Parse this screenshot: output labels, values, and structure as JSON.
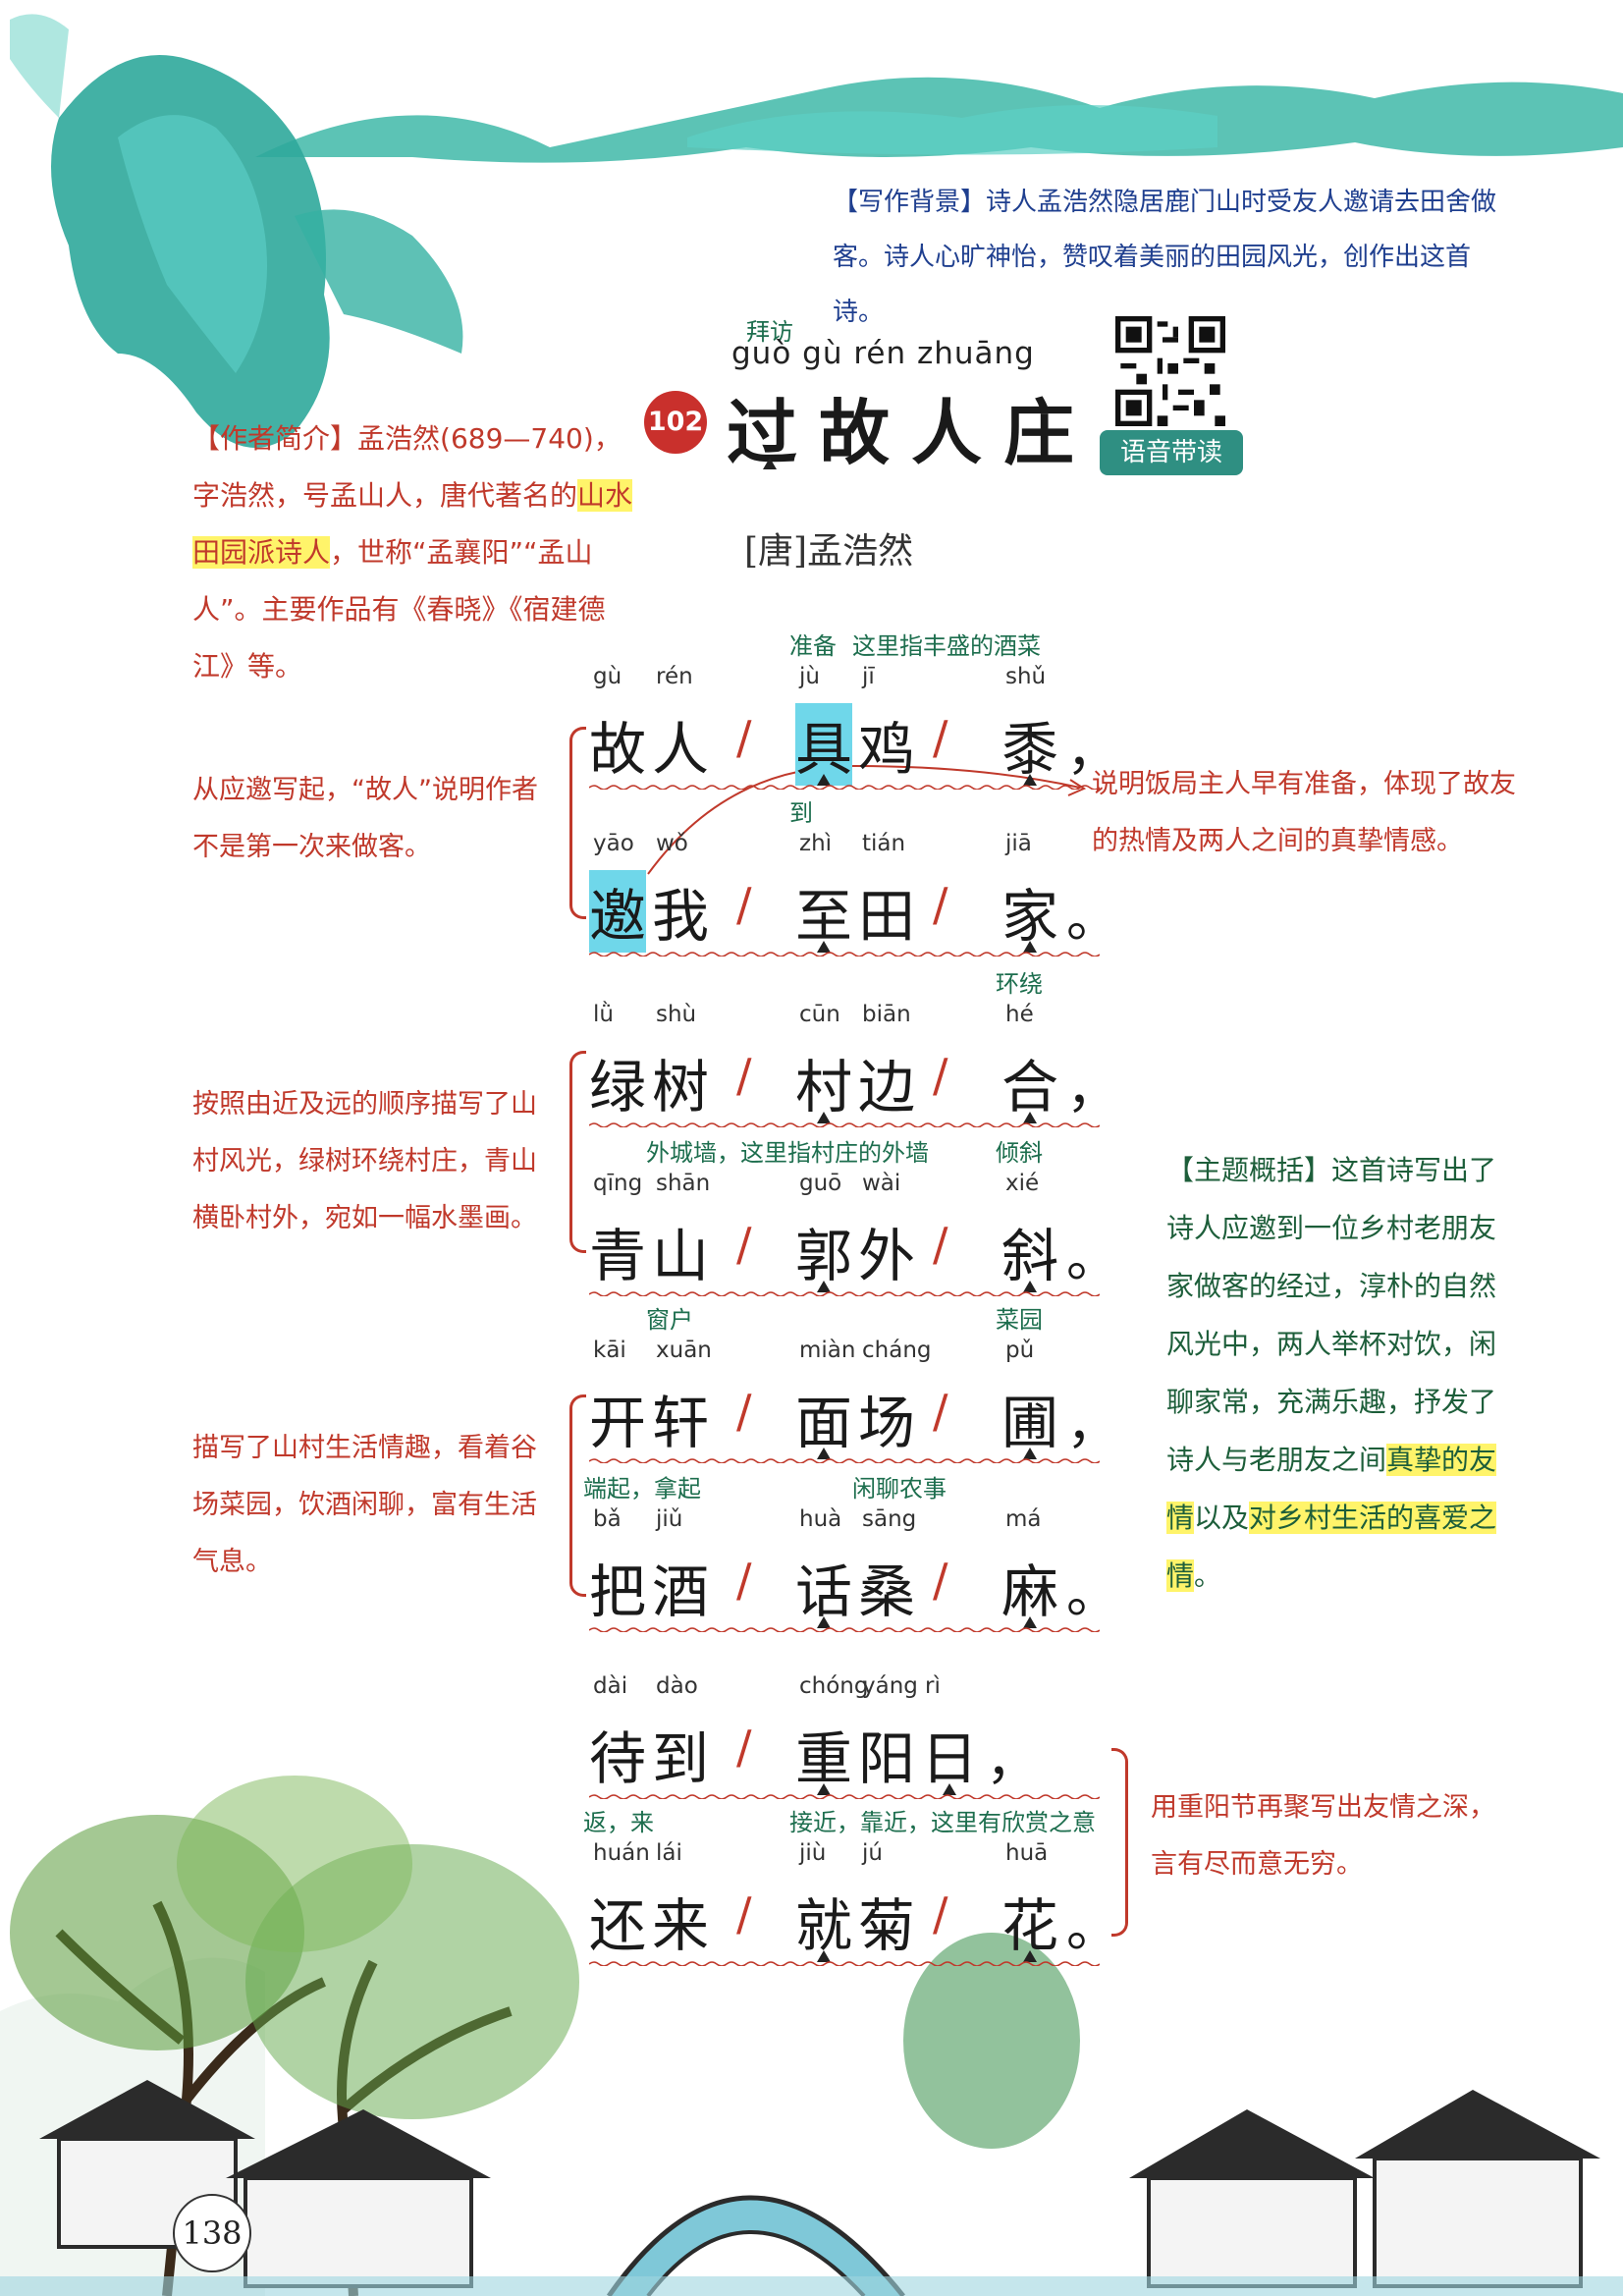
{
  "background_note": {
    "label": "【写作背景】",
    "text": "诗人孟浩然隐居鹿门山时受友人邀请去田舍做客。诗人心旷神怡，赞叹着美丽的田园风光，创作出这首诗。"
  },
  "title": {
    "number": "102",
    "annotation": "拜访",
    "pinyin": "guò gù rén zhuāng",
    "text": "过故人庄"
  },
  "author": "[唐]孟浩然",
  "audio": {
    "label": "语音带读",
    "icon": "qr-code-icon"
  },
  "author_note": {
    "label": "【作者简介】",
    "text_before": "孟浩然(689—740)，字浩然，号孟山人，唐代著名的",
    "highlight": "山水田园派诗人",
    "text_after": "，世称“孟襄阳”“孟山人”。主要作品有《春晓》《宿建德江》等。"
  },
  "poem": {
    "lines": [
      {
        "chars": [
          "故",
          "人",
          "具",
          "鸡",
          "黍"
        ],
        "pinyin": [
          "gù",
          "rén",
          "jù",
          "jī",
          "shǔ"
        ],
        "punc": "，",
        "glosses": [
          {
            "text": "准备",
            "over": 2
          },
          {
            "text": "这里指丰盛的酒菜",
            "over": 3
          }
        ]
      },
      {
        "chars": [
          "邀",
          "我",
          "至",
          "田",
          "家"
        ],
        "pinyin": [
          "yāo",
          "wǒ",
          "zhì",
          "tián",
          "jiā"
        ],
        "punc": "。",
        "glosses": [
          {
            "text": "到",
            "over": 2
          }
        ]
      },
      {
        "chars": [
          "绿",
          "树",
          "村",
          "边",
          "合"
        ],
        "pinyin": [
          "lǜ",
          "shù",
          "cūn",
          "biān",
          "hé"
        ],
        "punc": "，",
        "glosses": [
          {
            "text": "环绕",
            "over": 4
          }
        ]
      },
      {
        "chars": [
          "青",
          "山",
          "郭",
          "外",
          "斜"
        ],
        "pinyin": [
          "qīng",
          "shān",
          "guō",
          "wài",
          "xié"
        ],
        "punc": "。",
        "glosses": [
          {
            "text": "外城墙，这里指村庄的外墙",
            "over": 1
          },
          {
            "text": "倾斜",
            "over": 4
          }
        ]
      },
      {
        "chars": [
          "开",
          "轩",
          "面",
          "场",
          "圃"
        ],
        "pinyin": [
          "kāi",
          "xuān",
          "miàn",
          "cháng",
          "pǔ"
        ],
        "punc": "，",
        "glosses": [
          {
            "text": "窗户",
            "over": 1
          },
          {
            "text": "菜园",
            "over": 4
          }
        ]
      },
      {
        "chars": [
          "把",
          "酒",
          "话",
          "桑",
          "麻"
        ],
        "pinyin": [
          "bǎ",
          "jiǔ",
          "huà",
          "sāng",
          "má"
        ],
        "punc": "。",
        "glosses": [
          {
            "text": "端起，拿起",
            "over": 0
          },
          {
            "text": "闲聊农事",
            "over": 3
          }
        ]
      },
      {
        "chars": [
          "待",
          "到",
          "重",
          "阳",
          "日"
        ],
        "pinyin": [
          "dài",
          "dào",
          "chóng",
          "yáng",
          "rì"
        ],
        "punc": "，",
        "glosses": []
      },
      {
        "chars": [
          "还",
          "来",
          "就",
          "菊",
          "花"
        ],
        "pinyin": [
          "huán",
          "lái",
          "jiù",
          "jú",
          "huā"
        ],
        "punc": "。",
        "glosses": [
          {
            "text": "返，来",
            "over": 0
          },
          {
            "text": "接近，靠近，这里有欣赏之意",
            "over": 2
          }
        ]
      }
    ]
  },
  "notes": {
    "note1": "从应邀写起，“故人”说明作者不是第一次来做客。",
    "note2": "说明饭局主人早有准备，体现了故友的热情及两人之间的真挚情感。",
    "note3": "按照由近及远的顺序描写了山村风光，绿树环绕村庄，青山横卧村外，宛如一幅水墨画。",
    "note4": "描写了山村生活情趣，看着谷场菜园，饮酒闲聊，富有生活气息。",
    "note5": "用重阳节再聚写出友情之深，言有尽而意无穷。"
  },
  "theme_note": {
    "label": "【主题概括】",
    "text_before": "这首诗写出了诗人应邀到一位乡村老朋友家做客的经过，淳朴的自然风光中，两人举杯对饮，闲聊家常，充满乐趣，抒发了诗人与老朋友之间",
    "highlight1": "真挚的友情",
    "text_mid": "以及",
    "highlight2": "对乡村生活的喜爱之情",
    "text_after": "。"
  },
  "page_number": "138",
  "colors": {
    "accent_red": "#c0392b",
    "note_green": "#1d5e3a",
    "note_blue": "#1f3f8f",
    "highlight_yellow": "#fff46a",
    "highlight_cyan": "#6fd7ea"
  }
}
